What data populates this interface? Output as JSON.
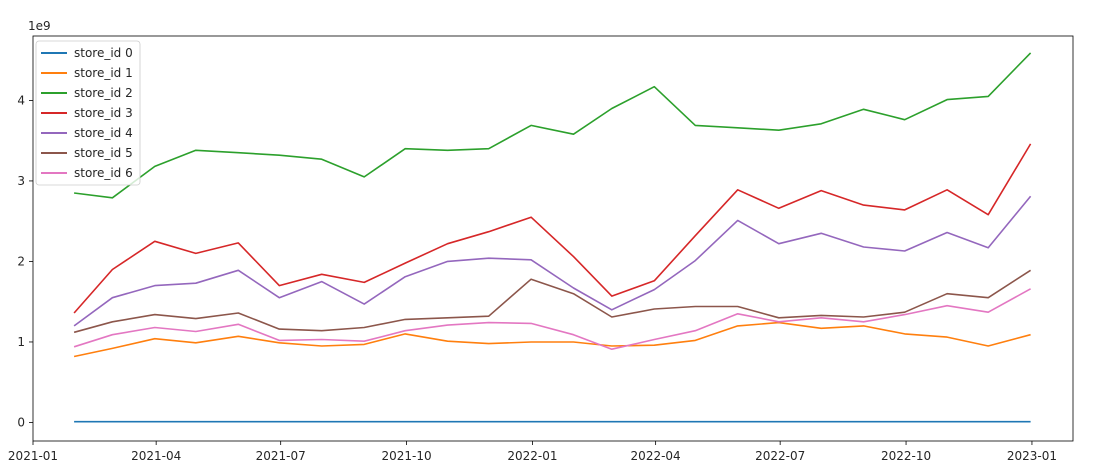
{
  "chart_data": {
    "type": "line",
    "scale_label": "1e9",
    "x": [
      "2021-01-31",
      "2021-02-28",
      "2021-03-31",
      "2021-04-30",
      "2021-05-31",
      "2021-06-30",
      "2021-07-31",
      "2021-08-31",
      "2021-09-30",
      "2021-10-31",
      "2021-11-30",
      "2021-12-31",
      "2022-01-31",
      "2022-02-28",
      "2022-03-31",
      "2022-04-30",
      "2022-05-31",
      "2022-06-30",
      "2022-07-31",
      "2022-08-31",
      "2022-09-30",
      "2022-10-31",
      "2022-11-30",
      "2022-12-31"
    ],
    "xticks": [
      "2021-01",
      "2021-04",
      "2021-07",
      "2021-10",
      "2022-01",
      "2022-04",
      "2022-07",
      "2022-10",
      "2023-01"
    ],
    "xlim": [
      "2021-01-01",
      "2023-01-31"
    ],
    "ylim": [
      -0.23,
      4.8
    ],
    "yticks": [
      0,
      1,
      2,
      3,
      4
    ],
    "grid": false,
    "legend_position": "top-left",
    "series": [
      {
        "name": "store_id 0",
        "color": "#1f77b4",
        "values": [
          0.01,
          0.01,
          0.01,
          0.01,
          0.01,
          0.01,
          0.01,
          0.01,
          0.01,
          0.01,
          0.01,
          0.01,
          0.01,
          0.01,
          0.01,
          0.01,
          0.01,
          0.01,
          0.01,
          0.01,
          0.01,
          0.01,
          0.01,
          0.01
        ]
      },
      {
        "name": "store_id 1",
        "color": "#ff7f0e",
        "values": [
          0.82,
          0.92,
          1.04,
          0.99,
          1.07,
          0.99,
          0.95,
          0.97,
          1.1,
          1.01,
          0.98,
          1.0,
          1.0,
          0.95,
          0.96,
          1.02,
          1.2,
          1.24,
          1.17,
          1.2,
          1.1,
          1.06,
          0.95,
          1.09
        ]
      },
      {
        "name": "store_id 2",
        "color": "#2ca02c",
        "values": [
          2.85,
          2.79,
          3.18,
          3.38,
          3.35,
          3.32,
          3.27,
          3.05,
          3.4,
          3.38,
          3.4,
          3.69,
          3.58,
          3.9,
          4.17,
          3.69,
          3.66,
          3.63,
          3.71,
          3.89,
          3.76,
          4.01,
          4.05,
          4.59
        ]
      },
      {
        "name": "store_id 3",
        "color": "#d62728",
        "values": [
          1.36,
          1.9,
          2.25,
          2.1,
          2.23,
          1.7,
          1.84,
          1.74,
          1.98,
          2.22,
          2.37,
          2.55,
          2.06,
          1.57,
          1.76,
          2.32,
          2.89,
          2.66,
          2.88,
          2.7,
          2.64,
          2.89,
          2.58,
          3.46
        ]
      },
      {
        "name": "store_id 4",
        "color": "#9467bd",
        "values": [
          1.2,
          1.55,
          1.7,
          1.73,
          1.89,
          1.55,
          1.75,
          1.47,
          1.81,
          2.0,
          2.04,
          2.02,
          1.67,
          1.4,
          1.65,
          2.01,
          2.51,
          2.22,
          2.35,
          2.18,
          2.13,
          2.36,
          2.17,
          2.81
        ]
      },
      {
        "name": "store_id 5",
        "color": "#8c564b",
        "values": [
          1.12,
          1.25,
          1.34,
          1.29,
          1.36,
          1.16,
          1.14,
          1.18,
          1.28,
          1.3,
          1.32,
          1.78,
          1.6,
          1.31,
          1.41,
          1.44,
          1.44,
          1.3,
          1.33,
          1.31,
          1.37,
          1.6,
          1.55,
          1.89
        ]
      },
      {
        "name": "store_id 6",
        "color": "#e377c2",
        "values": [
          0.94,
          1.09,
          1.18,
          1.13,
          1.22,
          1.02,
          1.03,
          1.01,
          1.14,
          1.21,
          1.24,
          1.23,
          1.09,
          0.91,
          1.03,
          1.14,
          1.35,
          1.25,
          1.3,
          1.25,
          1.34,
          1.45,
          1.37,
          1.66
        ]
      }
    ]
  }
}
